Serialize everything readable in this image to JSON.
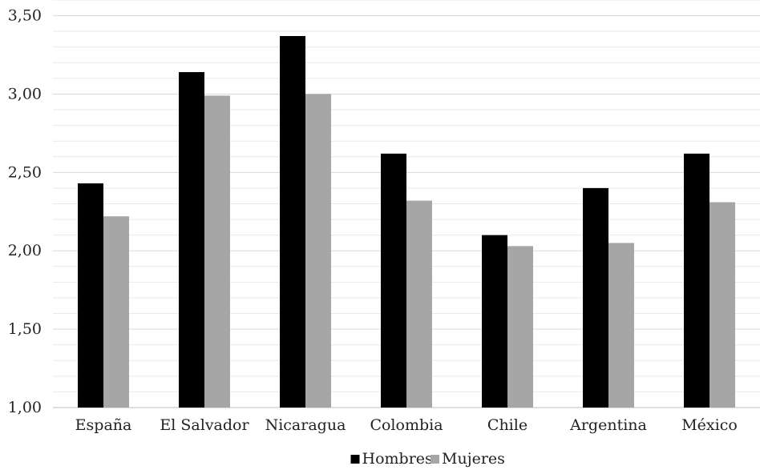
{
  "chart_data": {
    "type": "bar",
    "categories": [
      "España",
      "El Salvador",
      "Nicaragua",
      "Colombia",
      "Chile",
      "Argentina",
      "México"
    ],
    "series": [
      {
        "name": "Hombres",
        "values": [
          2.43,
          3.14,
          3.37,
          2.62,
          2.1,
          2.4,
          2.62
        ],
        "color": "#000000"
      },
      {
        "name": "Mujeres",
        "values": [
          2.22,
          2.99,
          3.0,
          2.32,
          2.03,
          2.05,
          2.31
        ],
        "color": "#a6a6a6"
      }
    ],
    "y_ticks": [
      "1,00",
      "1,50",
      "2,00",
      "2,50",
      "3,00",
      "3,50"
    ],
    "ylim": [
      1.0,
      3.6
    ],
    "grid": true,
    "minor_grid": true,
    "legend_position": "bottom-center",
    "title": "",
    "xlabel": "",
    "ylabel": ""
  }
}
